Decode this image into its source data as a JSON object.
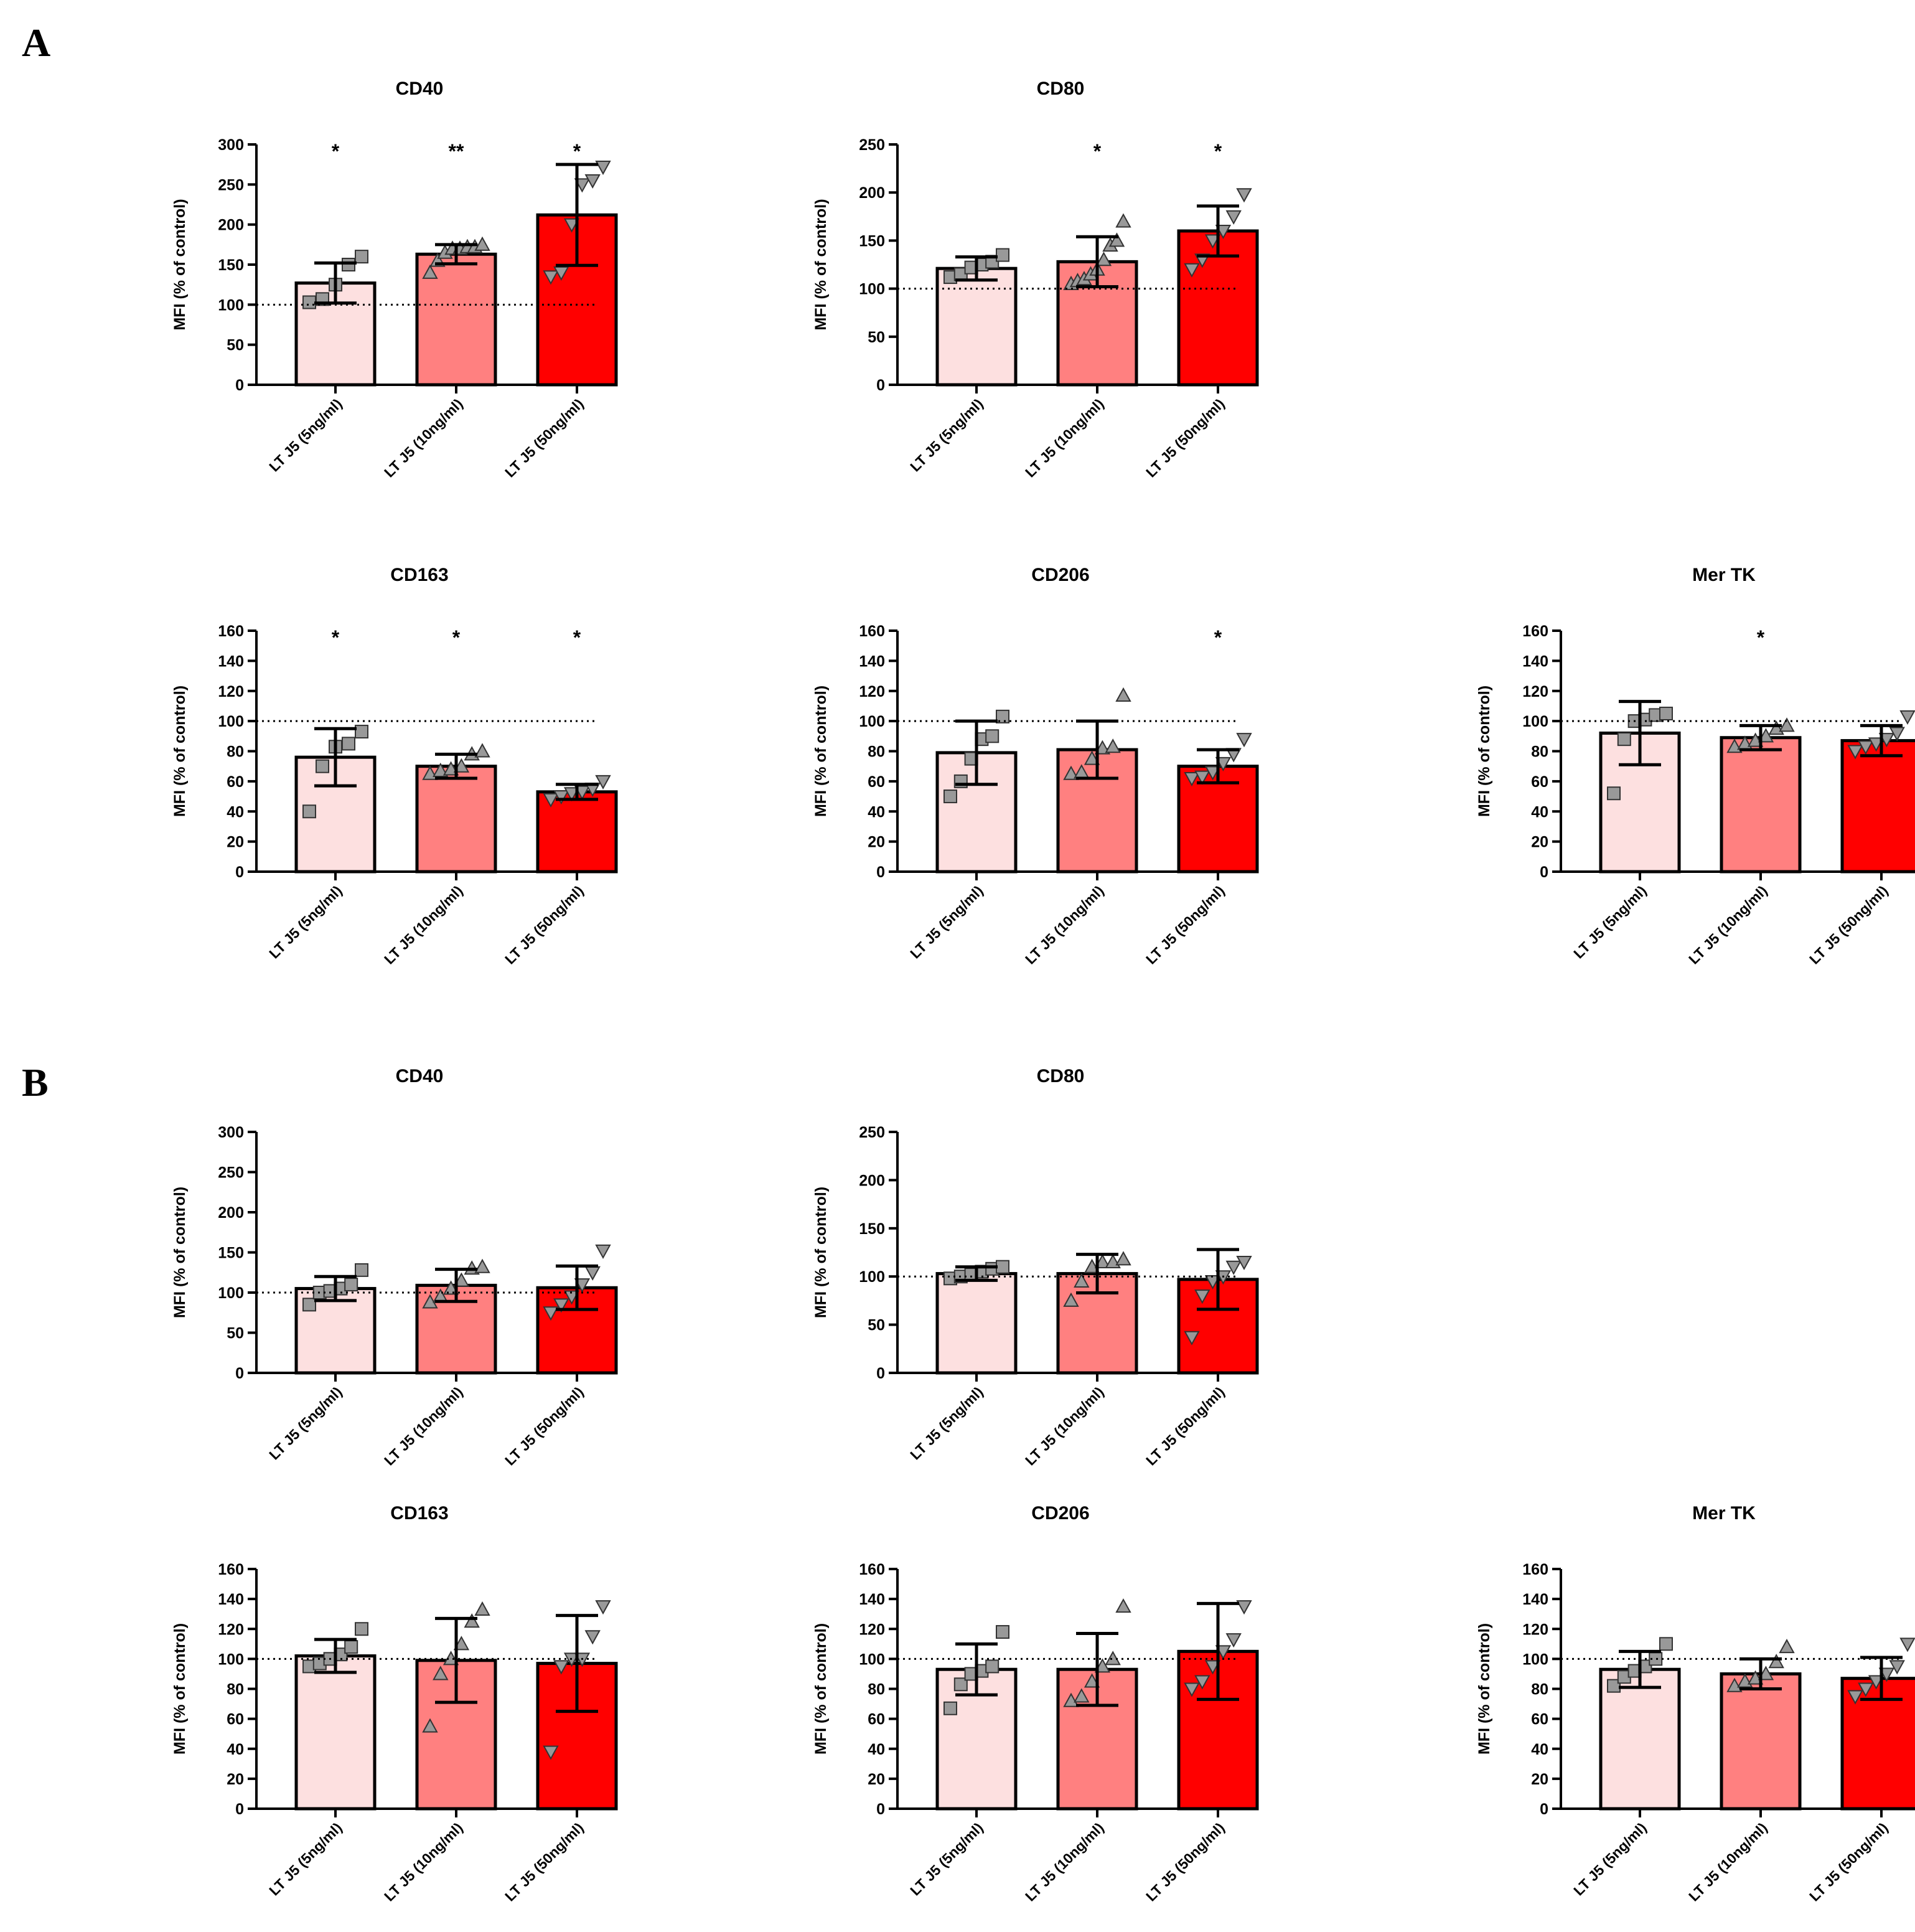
{
  "panels": [
    {
      "letter": "A",
      "charts": [
        {
          "type": "bar",
          "title": "CD40",
          "ylabel": "MFI (% of control)",
          "ylim": [
            0,
            300
          ],
          "yticks": [
            0,
            50,
            100,
            150,
            200,
            250,
            300
          ],
          "reference_line": 100,
          "categories": [
            "LT J5 (5ng/ml)",
            "LT J5 (10ng/ml)",
            "LT J5 (50ng/ml)"
          ],
          "values": [
            127,
            163,
            212
          ],
          "errors": [
            25,
            12,
            63
          ],
          "significance": [
            "*",
            "**",
            "*"
          ],
          "points": [
            [
              103,
              107,
              125,
              150,
              160
            ],
            [
              140,
              155,
              165,
              170,
              170,
              172,
              172,
              175
            ],
            [
              135,
              140,
              200,
              250,
              255,
              272
            ]
          ]
        },
        {
          "type": "bar",
          "title": "CD80",
          "ylabel": "MFI (% of control)",
          "ylim": [
            0,
            250
          ],
          "yticks": [
            0,
            50,
            100,
            150,
            200,
            250
          ],
          "reference_line": 100,
          "categories": [
            "LT J5 (5ng/ml)",
            "LT J5 (10ng/ml)",
            "LT J5 (50ng/ml)"
          ],
          "values": [
            121,
            128,
            160
          ],
          "errors": [
            12,
            26,
            26
          ],
          "significance": [
            "",
            "*",
            "*"
          ],
          "points": [
            [
              112,
              115,
              122,
              125,
              128,
              135
            ],
            [
              105,
              108,
              110,
              115,
              120,
              130,
              145,
              150,
              170
            ],
            [
              120,
              130,
              150,
              160,
              175,
              198
            ]
          ]
        },
        {
          "type": "bar",
          "title": "CD163",
          "ylabel": "MFI (% of control)",
          "ylim": [
            0,
            160
          ],
          "yticks": [
            0,
            20,
            40,
            60,
            80,
            100,
            120,
            140,
            160
          ],
          "reference_line": 100,
          "categories": [
            "LT J5 (5ng/ml)",
            "LT J5 (10ng/ml)",
            "LT J5 (50ng/ml)"
          ],
          "values": [
            76,
            70,
            53
          ],
          "errors": [
            19,
            8,
            5
          ],
          "significance": [
            "*",
            "*",
            "*"
          ],
          "points": [
            [
              40,
              70,
              83,
              85,
              93
            ],
            [
              65,
              67,
              68,
              70,
              78,
              80
            ],
            [
              48,
              50,
              52,
              53,
              55,
              60
            ]
          ]
        },
        {
          "type": "bar",
          "title": "CD206",
          "ylabel": "MFI (% of control)",
          "ylim": [
            0,
            160
          ],
          "yticks": [
            0,
            20,
            40,
            60,
            80,
            100,
            120,
            140,
            160
          ],
          "reference_line": 100,
          "categories": [
            "LT J5 (5ng/ml)",
            "LT J5 (10ng/ml)",
            "LT J5 (50ng/ml)"
          ],
          "values": [
            79,
            81,
            70
          ],
          "errors": [
            21,
            19,
            11
          ],
          "significance": [
            "",
            "",
            "*"
          ],
          "points": [
            [
              50,
              60,
              75,
              88,
              90,
              103
            ],
            [
              65,
              66,
              75,
              82,
              83,
              117
            ],
            [
              62,
              63,
              66,
              72,
              78,
              88
            ]
          ]
        },
        {
          "type": "bar",
          "title": "Mer TK",
          "ylabel": "MFI (% of control)",
          "ylim": [
            0,
            160
          ],
          "yticks": [
            0,
            20,
            40,
            60,
            80,
            100,
            120,
            140,
            160
          ],
          "reference_line": 100,
          "categories": [
            "LT J5 (5ng/ml)",
            "LT J5 (10ng/ml)",
            "LT J5 (50ng/ml)"
          ],
          "values": [
            92,
            89,
            87
          ],
          "errors": [
            21,
            8,
            10
          ],
          "significance": [
            "",
            "*",
            ""
          ],
          "points": [
            [
              52,
              88,
              100,
              101,
              104,
              105
            ],
            [
              83,
              85,
              87,
              90,
              95,
              97
            ],
            [
              80,
              83,
              85,
              88,
              92,
              103
            ]
          ]
        }
      ]
    },
    {
      "letter": "B",
      "charts": [
        {
          "type": "bar",
          "title": "CD40",
          "ylabel": "MFI (% of control)",
          "ylim": [
            0,
            300
          ],
          "yticks": [
            0,
            50,
            100,
            150,
            200,
            250,
            300
          ],
          "reference_line": 100,
          "categories": [
            "LT J5 (5ng/ml)",
            "LT J5 (10ng/ml)",
            "LT J5 (50ng/ml)"
          ],
          "values": [
            105,
            109,
            106
          ],
          "errors": [
            15,
            20,
            27
          ],
          "significance": [
            "",
            "",
            ""
          ],
          "points": [
            [
              85,
              100,
              102,
              105,
              110,
              128
            ],
            [
              88,
              95,
              105,
              115,
              130,
              132
            ],
            [
              75,
              85,
              95,
              110,
              125,
              152
            ]
          ]
        },
        {
          "type": "bar",
          "title": "CD80",
          "ylabel": "MFI (% of control)",
          "ylim": [
            0,
            250
          ],
          "yticks": [
            0,
            50,
            100,
            150,
            200,
            250
          ],
          "reference_line": 100,
          "categories": [
            "LT J5 (5ng/ml)",
            "LT J5 (10ng/ml)",
            "LT J5 (50ng/ml)"
          ],
          "values": [
            103,
            103,
            97
          ],
          "errors": [
            7,
            20,
            31
          ],
          "significance": [
            "",
            "",
            ""
          ],
          "points": [
            [
              98,
              100,
              102,
              105,
              108,
              110
            ],
            [
              75,
              95,
              110,
              115,
              115,
              118
            ],
            [
              37,
              80,
              95,
              100,
              110,
              115
            ]
          ]
        },
        {
          "type": "bar",
          "title": "CD163",
          "ylabel": "MFI (% of control)",
          "ylim": [
            0,
            160
          ],
          "yticks": [
            0,
            20,
            40,
            60,
            80,
            100,
            120,
            140,
            160
          ],
          "reference_line": 100,
          "categories": [
            "LT J5 (5ng/ml)",
            "LT J5 (10ng/ml)",
            "LT J5 (50ng/ml)"
          ],
          "values": [
            102,
            99,
            97
          ],
          "errors": [
            11,
            28,
            32
          ],
          "significance": [
            "",
            "",
            ""
          ],
          "points": [
            [
              95,
              97,
              100,
              103,
              108,
              120
            ],
            [
              55,
              90,
              100,
              110,
              125,
              133
            ],
            [
              38,
              95,
              100,
              100,
              115,
              135
            ]
          ]
        },
        {
          "type": "bar",
          "title": "CD206",
          "ylabel": "MFI (% of control)",
          "ylim": [
            0,
            160
          ],
          "yticks": [
            0,
            20,
            40,
            60,
            80,
            100,
            120,
            140,
            160
          ],
          "reference_line": 100,
          "categories": [
            "LT J5 (5ng/ml)",
            "LT J5 (10ng/ml)",
            "LT J5 (50ng/ml)"
          ],
          "values": [
            93,
            93,
            105
          ],
          "errors": [
            17,
            24,
            32
          ],
          "significance": [
            "",
            "",
            ""
          ],
          "points": [
            [
              67,
              83,
              90,
              92,
              95,
              118
            ],
            [
              72,
              75,
              85,
              95,
              100,
              135
            ],
            [
              80,
              85,
              95,
              105,
              113,
              135
            ]
          ]
        },
        {
          "type": "bar",
          "title": "Mer TK",
          "ylabel": "MFI (% of control)",
          "ylim": [
            0,
            160
          ],
          "yticks": [
            0,
            20,
            40,
            60,
            80,
            100,
            120,
            140,
            160
          ],
          "reference_line": 100,
          "categories": [
            "LT J5 (5ng/ml)",
            "LT J5 (10ng/ml)",
            "LT J5 (50ng/ml)"
          ],
          "values": [
            93,
            90,
            87
          ],
          "errors": [
            12,
            10,
            14
          ],
          "significance": [
            "",
            "",
            ""
          ],
          "points": [
            [
              82,
              88,
              92,
              95,
              100,
              110
            ],
            [
              82,
              85,
              87,
              90,
              98,
              108
            ],
            [
              75,
              80,
              85,
              90,
              95,
              110
            ]
          ]
        }
      ]
    }
  ],
  "colors": {
    "bars": [
      "#fde0e0",
      "#ff8080",
      "#ff0000"
    ],
    "points": "#999999",
    "stroke": "#000000"
  },
  "markers": [
    "square",
    "triangle-up",
    "triangle-down"
  ]
}
